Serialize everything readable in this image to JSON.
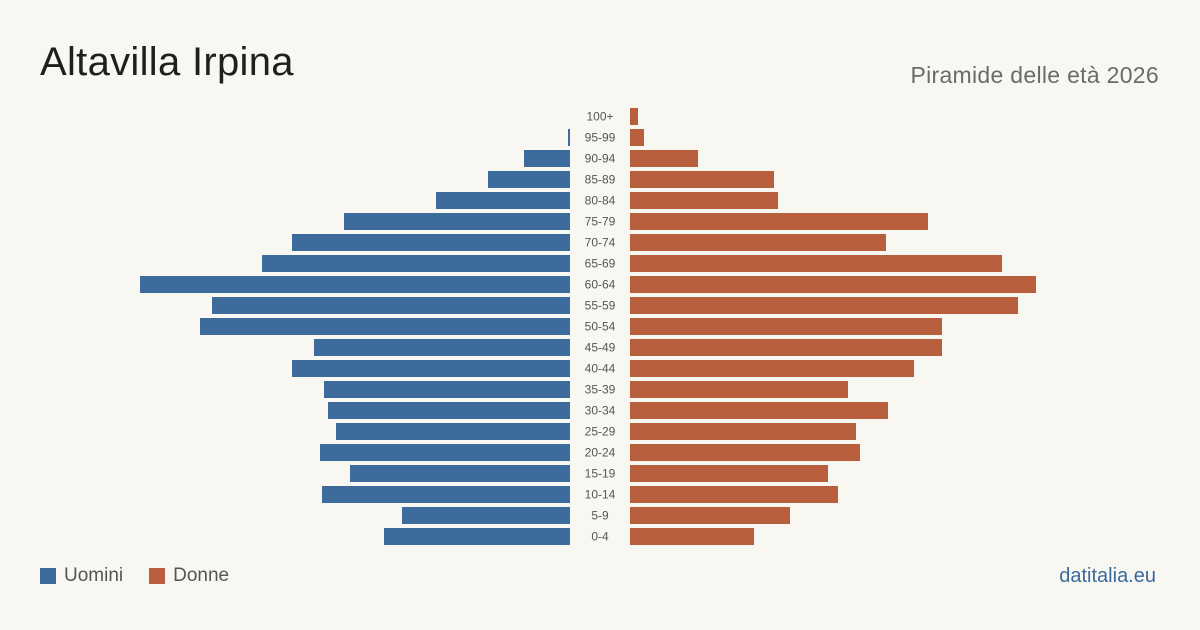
{
  "header": {
    "title": "Altavilla Irpina",
    "subtitle": "Piramide delle età 2026"
  },
  "legend": {
    "male_label": "Uomini",
    "female_label": "Donne"
  },
  "brand": "datitalia.eu",
  "colors": {
    "male": "#3d6b9c",
    "female": "#b85f3e",
    "background": "#f9f7f2"
  },
  "chart_data": {
    "type": "bar",
    "orientation": "horizontal-pyramid",
    "title": "Altavilla Irpina",
    "subtitle": "Piramide delle età 2026",
    "categories": [
      "100+",
      "95-99",
      "90-94",
      "85-89",
      "80-84",
      "75-79",
      "70-74",
      "65-69",
      "60-64",
      "55-59",
      "50-54",
      "45-49",
      "40-44",
      "35-39",
      "30-34",
      "25-29",
      "20-24",
      "15-19",
      "10-14",
      "5-9",
      "0-4"
    ],
    "series": [
      {
        "name": "Uomini",
        "values": [
          0,
          1,
          23,
          41,
          67,
          113,
          139,
          154,
          215,
          179,
          185,
          128,
          139,
          123,
          121,
          117,
          125,
          110,
          124,
          84,
          93
        ]
      },
      {
        "name": "Donne",
        "values": [
          4,
          7,
          34,
          72,
          74,
          149,
          128,
          186,
          203,
          194,
          156,
          156,
          142,
          109,
          129,
          113,
          115,
          99,
          104,
          80,
          62
        ]
      }
    ],
    "xlim": [
      0,
      215
    ],
    "grid": false,
    "legend_position": "bottom-left"
  }
}
